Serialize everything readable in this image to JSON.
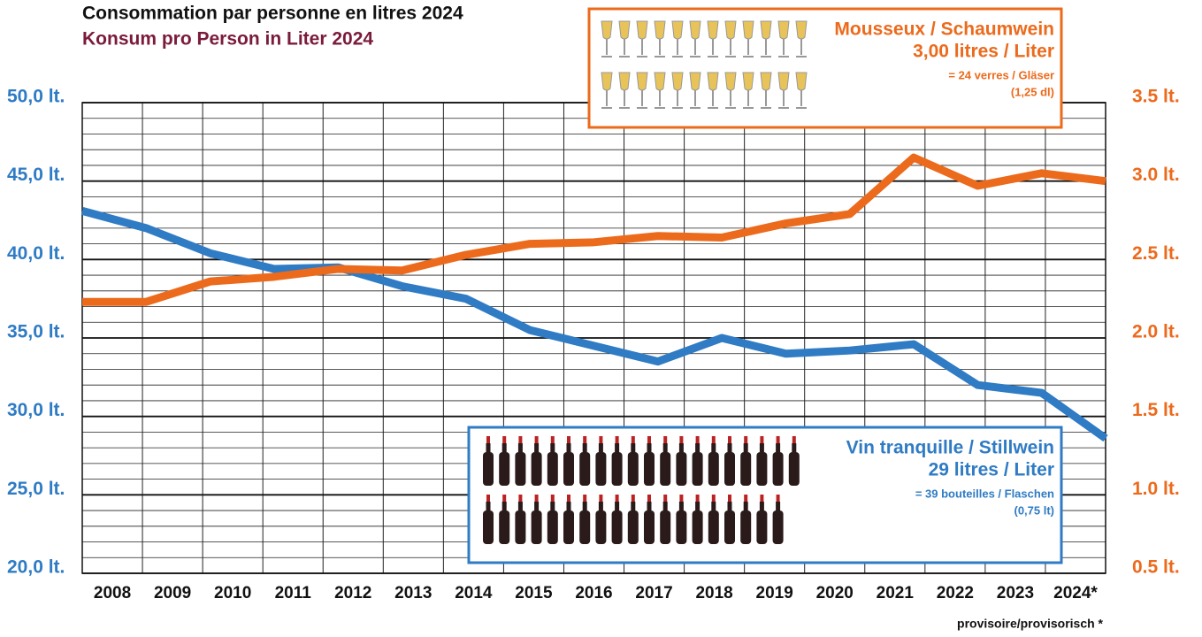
{
  "chart_data": {
    "type": "line",
    "title": "Consommation par personne en litres 2024",
    "subtitle": "Konsum pro Person in Liter 2024",
    "categories": [
      "2008",
      "2009",
      "2010",
      "2011",
      "2012",
      "2013",
      "2014",
      "2015",
      "2016",
      "2017",
      "2018",
      "2019",
      "2020",
      "2021",
      "2022",
      "2023",
      "2024*"
    ],
    "series": [
      {
        "name": "Vin tranquille / Stillwein",
        "color": "#2f7bc4",
        "values": [
          43.1,
          42.0,
          40.4,
          39.4,
          39.5,
          38.3,
          37.5,
          35.5,
          34.5,
          33.5,
          35.0,
          34.0,
          34.2,
          34.6,
          32.0,
          31.5,
          28.6
        ]
      },
      {
        "name": "Mousseux / Schaumwein",
        "color": "#ec6a1c",
        "axis": "y2",
        "values": [
          2.23,
          2.23,
          2.36,
          2.39,
          2.44,
          2.43,
          2.53,
          2.6,
          2.61,
          2.65,
          2.64,
          2.73,
          2.79,
          3.15,
          2.97,
          3.05,
          3.0
        ]
      }
    ],
    "ylim": [
      20,
      50
    ],
    "yticks": [
      {
        "value": 20,
        "label": "20,0 lt."
      },
      {
        "value": 25,
        "label": "25,0 lt."
      },
      {
        "value": 30,
        "label": "30,0 lt."
      },
      {
        "value": 35,
        "label": "35,0 lt."
      },
      {
        "value": 40,
        "label": "40,0 lt."
      },
      {
        "value": 45,
        "label": "45,0 lt."
      },
      {
        "value": 50,
        "label": "50,0 lt."
      }
    ],
    "yminorticks": [
      21,
      22,
      23,
      24,
      26,
      27,
      28,
      29,
      31,
      32,
      33,
      34,
      36,
      37,
      38,
      39,
      41,
      42,
      43,
      44,
      46,
      47,
      48,
      49
    ],
    "y2lim": [
      0.5,
      3.5
    ],
    "y2ticks": [
      {
        "value": 0.5,
        "label": "0.5 lt."
      },
      {
        "value": 1.0,
        "label": "1.0 lt."
      },
      {
        "value": 1.5,
        "label": "1.5 lt."
      },
      {
        "value": 2.0,
        "label": "2.0 lt."
      },
      {
        "value": 2.5,
        "label": "2.5 lt."
      },
      {
        "value": 3.0,
        "label": "3.0 lt."
      },
      {
        "value": 3.5,
        "label": "3.5 lt."
      }
    ],
    "grid": true,
    "boxes": [
      {
        "title": "Mousseux / Schaumwein",
        "amount": "3,00 litres / Liter",
        "equiv": "= 24 verres / Gläser",
        "unit": "(1,25 dl)"
      },
      {
        "title": "Vin tranquille / Stillwein",
        "amount": "29 litres / Liter",
        "equiv": "= 39 bouteilles / Flaschen",
        "unit": "(0,75 lt)"
      }
    ],
    "footnote": "provisoire/provisorisch *"
  }
}
